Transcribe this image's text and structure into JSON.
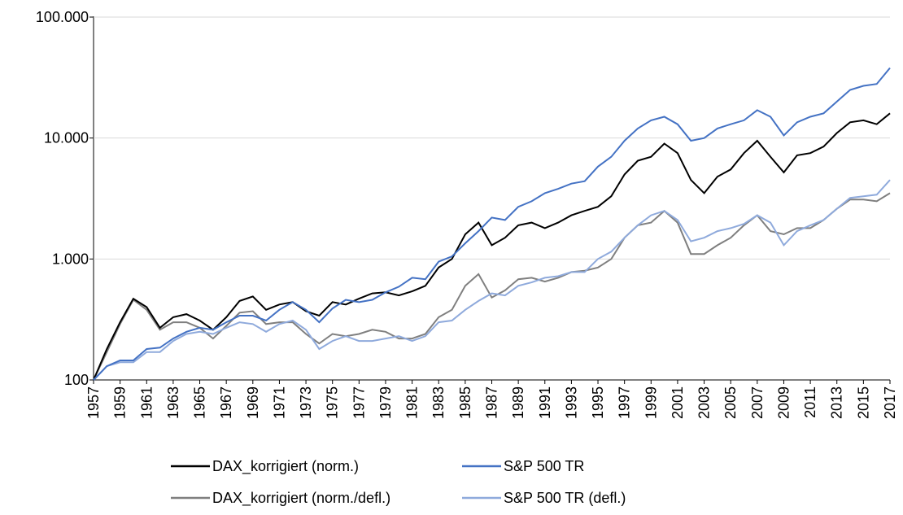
{
  "chart_data": {
    "type": "line",
    "log_y": true,
    "grid": true,
    "x": [
      1957,
      1958,
      1959,
      1960,
      1961,
      1962,
      1963,
      1964,
      1965,
      1966,
      1967,
      1968,
      1969,
      1970,
      1971,
      1972,
      1973,
      1974,
      1975,
      1976,
      1977,
      1978,
      1979,
      1980,
      1981,
      1982,
      1983,
      1984,
      1985,
      1986,
      1987,
      1988,
      1989,
      1990,
      1991,
      1992,
      1993,
      1994,
      1995,
      1996,
      1997,
      1998,
      1999,
      2000,
      2001,
      2002,
      2003,
      2004,
      2005,
      2006,
      2007,
      2008,
      2009,
      2010,
      2011,
      2012,
      2013,
      2014,
      2015,
      2016,
      2017
    ],
    "xlim": [
      1957,
      2017
    ],
    "xticks": [
      1957,
      1959,
      1961,
      1963,
      1965,
      1967,
      1969,
      1971,
      1973,
      1975,
      1977,
      1979,
      1981,
      1983,
      1985,
      1987,
      1989,
      1991,
      1993,
      1995,
      1997,
      1999,
      2001,
      2003,
      2005,
      2007,
      2009,
      2011,
      2013,
      2015,
      2017
    ],
    "ylim": [
      100,
      100000
    ],
    "yticks": [
      {
        "value": 100,
        "label": "100"
      },
      {
        "value": 1000,
        "label": "1.000"
      },
      {
        "value": 10000,
        "label": "10.000"
      },
      {
        "value": 100000,
        "label": "100.000"
      }
    ],
    "series": [
      {
        "name": "DAX_korrigiert (norm.)",
        "color": "#000000",
        "values": [
          100,
          180,
          300,
          470,
          400,
          270,
          330,
          350,
          310,
          260,
          330,
          450,
          490,
          380,
          420,
          440,
          370,
          340,
          440,
          420,
          470,
          520,
          530,
          500,
          540,
          600,
          850,
          1000,
          1600,
          2000,
          1300,
          1500,
          1900,
          2000,
          1800,
          2000,
          2300,
          2500,
          2700,
          3300,
          5000,
          6500,
          7000,
          9000,
          7500,
          4500,
          3500,
          4800,
          5500,
          7500,
          9500,
          7000,
          5200,
          7200,
          7500,
          8500,
          11000,
          13500,
          14000,
          13000,
          16000
        ]
      },
      {
        "name": "S&P 500 TR",
        "color": "#4472c4",
        "values": [
          100,
          130,
          145,
          145,
          180,
          185,
          220,
          250,
          270,
          260,
          300,
          340,
          340,
          310,
          380,
          440,
          380,
          300,
          390,
          460,
          440,
          460,
          530,
          590,
          700,
          680,
          950,
          1050,
          1350,
          1700,
          2200,
          2100,
          2700,
          3000,
          3500,
          3800,
          4200,
          4400,
          5800,
          7000,
          9500,
          12000,
          14000,
          15000,
          13000,
          9500,
          10000,
          12000,
          13000,
          14000,
          17000,
          15000,
          10500,
          13500,
          15000,
          16000,
          20000,
          25000,
          27000,
          28000,
          38000
        ]
      },
      {
        "name": "DAX_korrigiert (norm./defl.)",
        "color": "#7f7f7f",
        "values": [
          100,
          170,
          290,
          460,
          380,
          260,
          300,
          300,
          270,
          220,
          280,
          360,
          370,
          290,
          300,
          300,
          240,
          200,
          240,
          230,
          240,
          260,
          250,
          220,
          220,
          240,
          330,
          380,
          600,
          750,
          480,
          550,
          680,
          700,
          650,
          700,
          780,
          800,
          850,
          1000,
          1500,
          1900,
          2000,
          2500,
          2000,
          1100,
          1100,
          1300,
          1500,
          1900,
          2300,
          1700,
          1600,
          1800,
          1800,
          2100,
          2600,
          3100,
          3100,
          3000,
          3500
        ]
      },
      {
        "name": "S&P 500 TR (defl.)",
        "color": "#8faadc",
        "values": [
          100,
          130,
          140,
          140,
          170,
          170,
          210,
          240,
          250,
          240,
          270,
          300,
          290,
          250,
          290,
          310,
          260,
          180,
          210,
          230,
          210,
          210,
          220,
          230,
          210,
          230,
          300,
          310,
          380,
          450,
          520,
          500,
          600,
          640,
          700,
          720,
          780,
          780,
          1000,
          1150,
          1500,
          1900,
          2300,
          2500,
          2100,
          1400,
          1500,
          1700,
          1800,
          1950,
          2300,
          2000,
          1300,
          1700,
          1900,
          2100,
          2600,
          3200,
          3300,
          3400,
          4500
        ]
      }
    ]
  }
}
